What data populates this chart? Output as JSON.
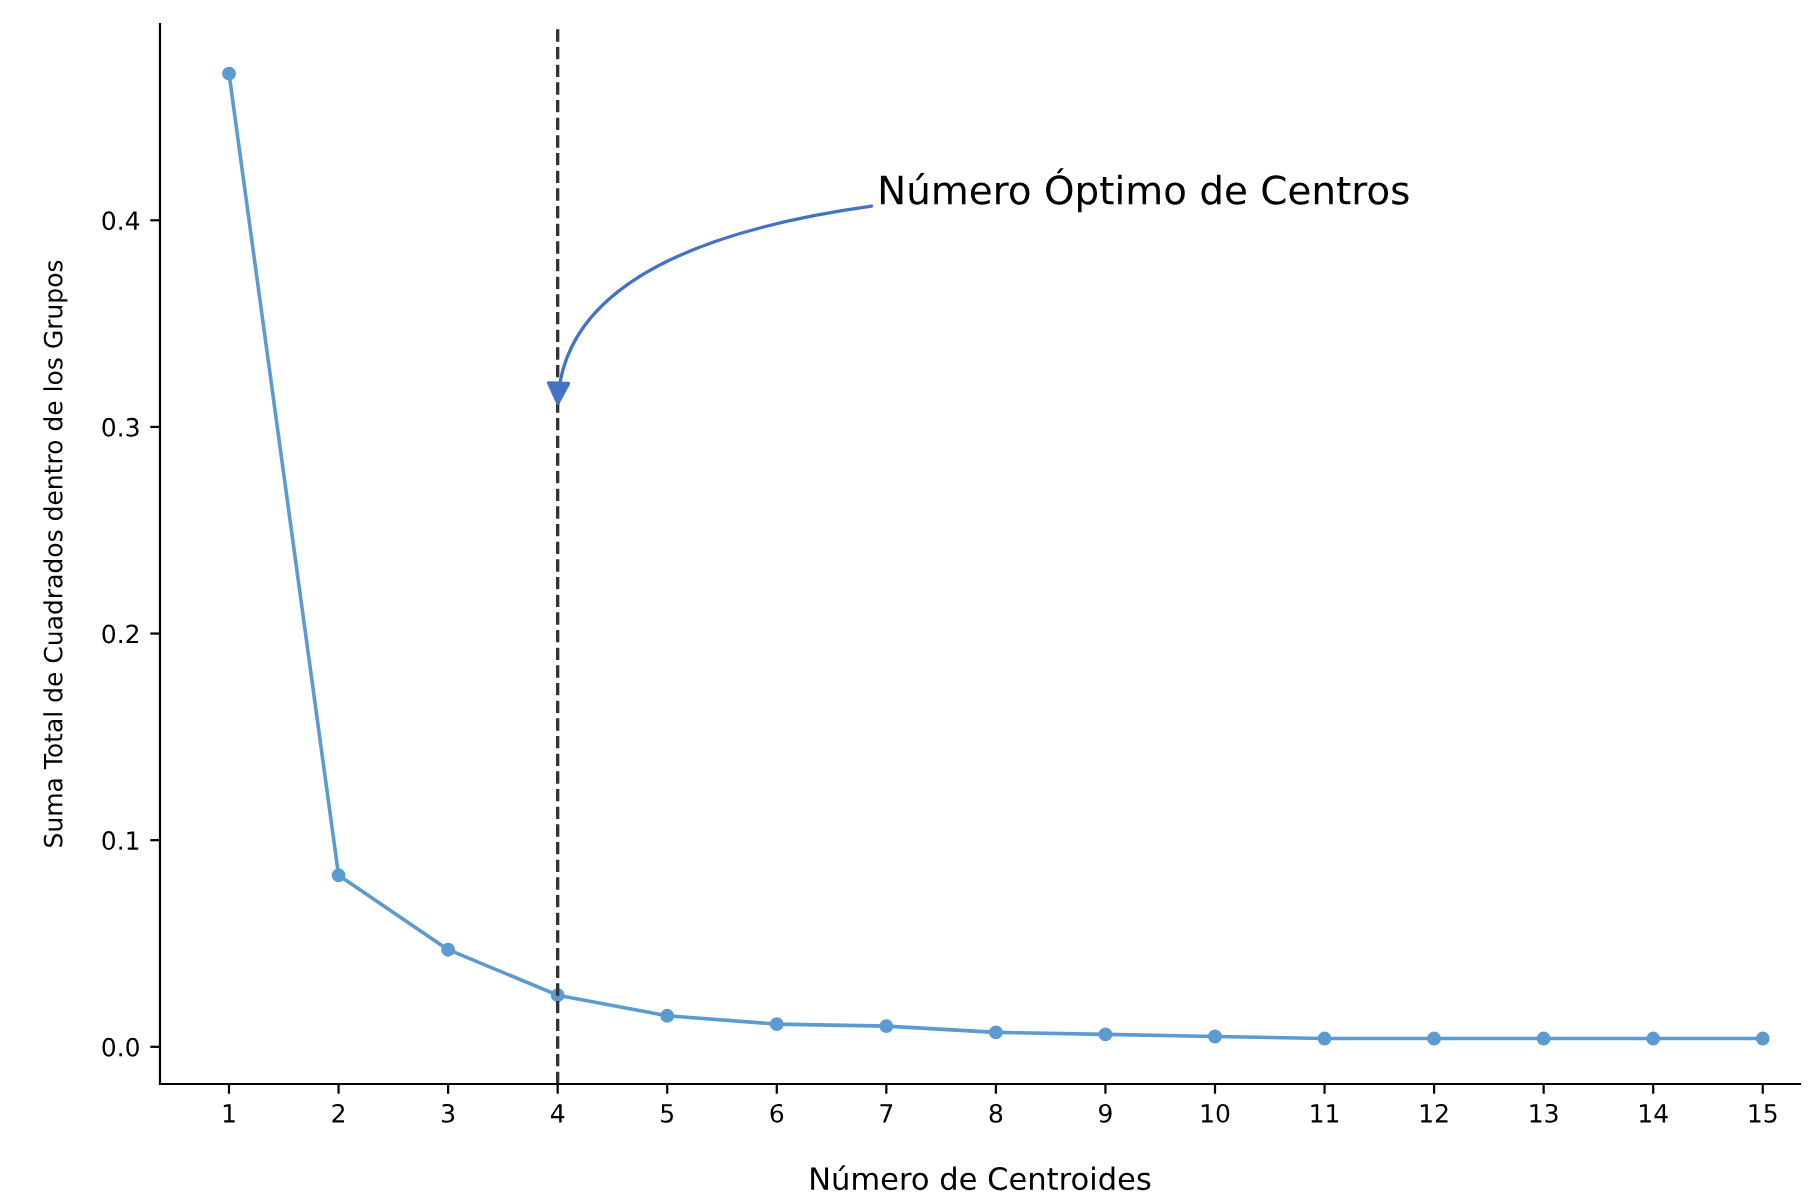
{
  "chart_data": {
    "type": "line",
    "xlabel": "Número de Centroides",
    "ylabel": "Suma Total de Cuadrados dentro de los Grupos",
    "x": [
      1,
      2,
      3,
      4,
      5,
      6,
      7,
      8,
      9,
      10,
      11,
      12,
      13,
      14,
      15
    ],
    "series": [
      {
        "color": "#5b9bd0",
        "values": [
          0.471,
          0.083,
          0.047,
          0.025,
          0.015,
          0.011,
          0.01,
          0.007,
          0.006,
          0.005,
          0.004,
          0.004,
          0.004,
          0.004,
          0.004
        ]
      }
    ],
    "xlim": [
      0.37,
      15.34
    ],
    "ylim": [
      -0.018,
      0.495
    ],
    "xticks": [
      1,
      2,
      3,
      4,
      5,
      6,
      7,
      8,
      9,
      10,
      11,
      12,
      13,
      14,
      15
    ],
    "yticks": [
      {
        "value": 0.0,
        "label": "0.0"
      },
      {
        "value": 0.1,
        "label": "0.1"
      },
      {
        "value": 0.2,
        "label": "0.2"
      },
      {
        "value": 0.3,
        "label": "0.3"
      },
      {
        "value": 0.4,
        "label": "0.4"
      }
    ],
    "ref_lines": [
      {
        "axis": "x",
        "value": 4,
        "color": "#333333",
        "line_style": "dashed"
      }
    ],
    "annotations": [
      {
        "text": "Número Óptimo de Centros",
        "x": 4,
        "y": 0.307
      }
    ],
    "marker": "circle",
    "line_style": "solid",
    "grid": false,
    "legend": false
  }
}
